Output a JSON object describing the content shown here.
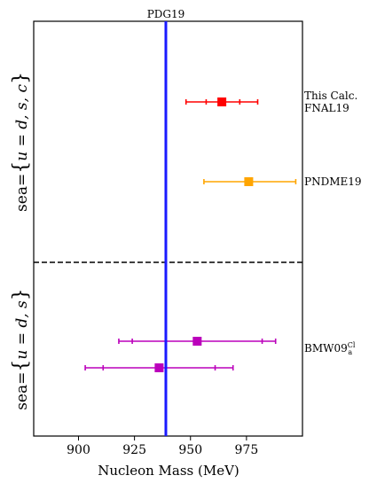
{
  "chart_data": {
    "type": "scatter",
    "xlabel": "Nucleon Mass (MeV)",
    "xlim": [
      880,
      1000
    ],
    "xticks": [
      900,
      925,
      950,
      975
    ],
    "reference": {
      "label": "PDG19",
      "value": 939,
      "color": "#1a1aff"
    },
    "groups": [
      {
        "label": "sea={u=d,s,c}"
      },
      {
        "label": "sea={u=d,s}"
      }
    ],
    "labels": [
      {
        "lines": [
          "This Calc.",
          "FNAL19"
        ]
      },
      {
        "lines": [
          "PNDME19"
        ]
      },
      {
        "lines": [
          "BMW09"
        ],
        "superscript": "Cl",
        "subscript": "a"
      }
    ],
    "series": [
      {
        "value": 964,
        "stat_err": [
          957,
          972
        ],
        "total_err": [
          948,
          980
        ],
        "color": "#ff0000"
      },
      {
        "value": 976,
        "stat_err": [
          976,
          976
        ],
        "total_err": [
          956,
          997
        ],
        "color": "#ffa500"
      },
      {
        "value": 953,
        "stat_err": [
          924,
          982
        ],
        "total_err": [
          918,
          988
        ],
        "color": "#bb00bb"
      },
      {
        "value": 936,
        "stat_err": [
          911,
          961
        ],
        "total_err": [
          903,
          969
        ],
        "color": "#bb00bb"
      }
    ]
  }
}
